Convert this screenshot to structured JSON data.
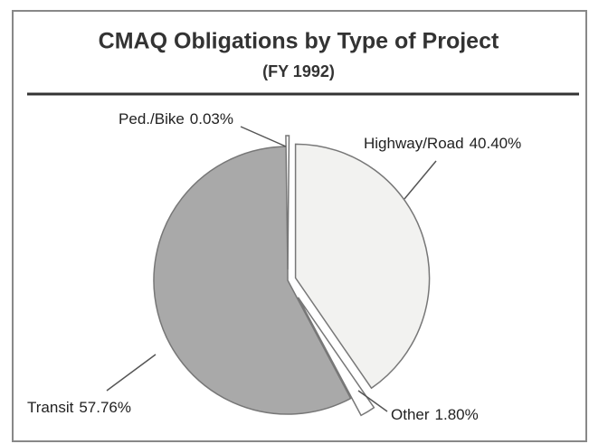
{
  "chart_data": {
    "type": "pie",
    "title": "CMAQ Obligations by Type of Project",
    "subtitle": "(FY 1992)",
    "categories": [
      "Highway/Road",
      "Other",
      "Transit",
      "Ped./Bike"
    ],
    "values": [
      40.4,
      1.8,
      57.76,
      0.03
    ],
    "value_labels": [
      "40.40%",
      "1.80%",
      "57.76%",
      "0.03%"
    ],
    "colors": [
      "#f2f2f0",
      "#ffffff",
      "#a9a9a9",
      "#ffffff"
    ]
  }
}
